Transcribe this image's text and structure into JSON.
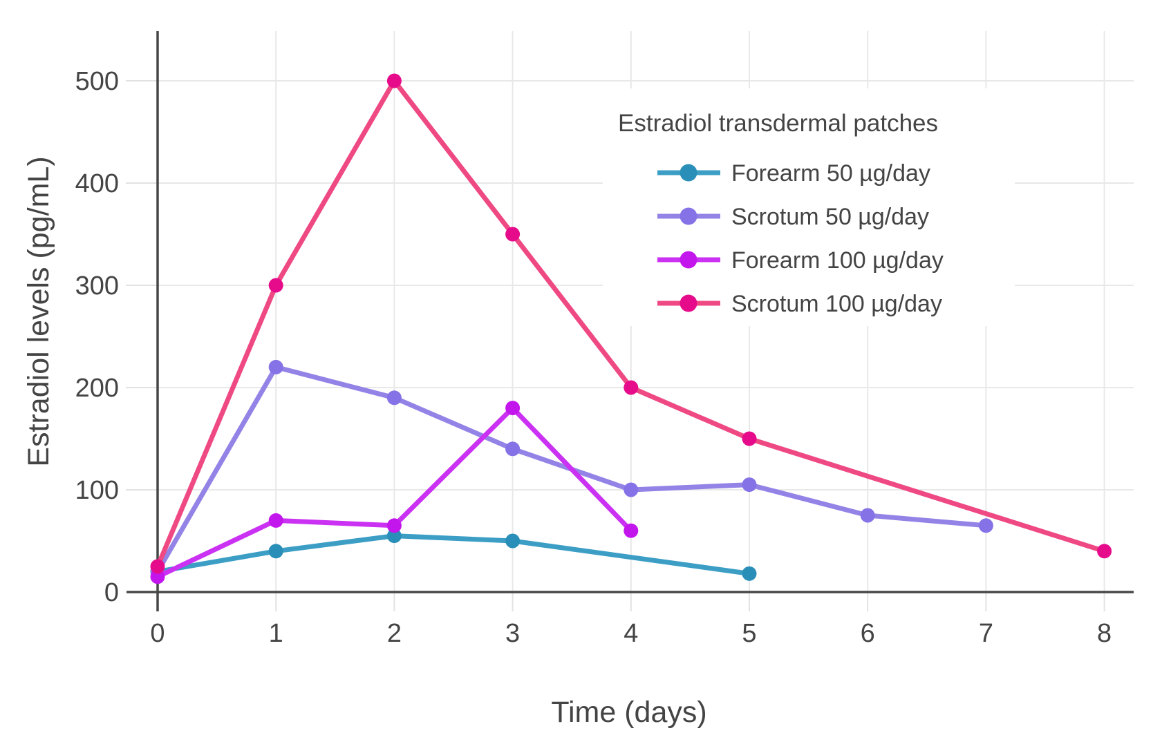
{
  "figure": {
    "background": "#ffffff"
  },
  "colors": {
    "text": "#444444",
    "grid": "#e8e8e8",
    "tick": "#e2e2e2",
    "axis": "#474747",
    "legend_background": "#ffffff"
  },
  "chart_data": {
    "type": "line",
    "title": "",
    "xlabel": "Time (days)",
    "ylabel": "Estradiol levels (pg/mL)",
    "x_ticks": [
      0,
      1,
      2,
      3,
      4,
      5,
      6,
      7,
      8
    ],
    "y_ticks": [
      0,
      100,
      200,
      300,
      400,
      500
    ],
    "xlim": [
      0,
      8.25
    ],
    "ylim": [
      0,
      548
    ],
    "grid": true,
    "legend": {
      "title": "Estradiol transdermal patches",
      "position": "top-right"
    },
    "series": [
      {
        "name": "Forearm 50 µg/day",
        "marker_color": "#2a8fb8",
        "line_color": "#3c9ec5",
        "x": [
          0,
          1,
          2,
          3,
          5
        ],
        "y": [
          20,
          40,
          55,
          50,
          18
        ]
      },
      {
        "name": "Scrotum 50 µg/day",
        "marker_color": "#8572e6",
        "line_color": "#9383e6",
        "x": [
          0,
          1,
          2,
          3,
          4,
          5,
          6,
          7
        ],
        "y": [
          20,
          220,
          190,
          140,
          100,
          105,
          75,
          65
        ]
      },
      {
        "name": "Forearm 100 µg/day",
        "marker_color": "#c316ec",
        "line_color": "#cb31f2",
        "x": [
          0,
          1,
          2,
          3,
          4
        ],
        "y": [
          15,
          70,
          65,
          180,
          60
        ]
      },
      {
        "name": "Scrotum 100 µg/day",
        "marker_color": "#e60b8b",
        "line_color": "#ef4983",
        "x": [
          0,
          1,
          2,
          3,
          4,
          5,
          8
        ],
        "y": [
          25,
          300,
          500,
          350,
          200,
          150,
          40
        ]
      }
    ]
  }
}
